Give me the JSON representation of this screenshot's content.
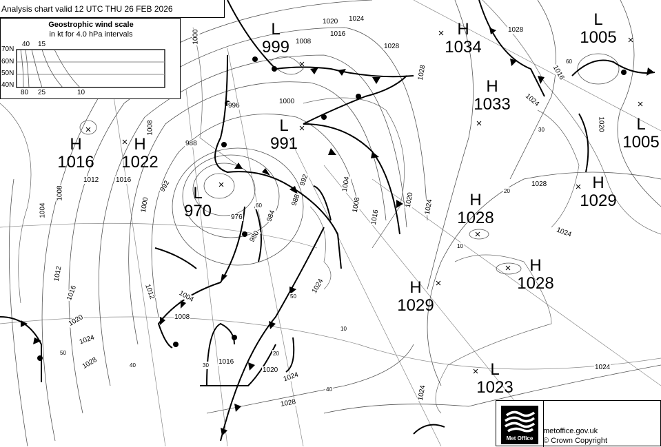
{
  "header": {
    "title": "Analysis chart  valid 12 UTC THU 26  FEB 2026"
  },
  "wind_scale": {
    "title": "Geostrophic wind scale",
    "subtitle": "in kt for 4.0 hPa intervals",
    "latitudes": [
      "70N",
      "60N",
      "50N",
      "40N"
    ],
    "top_labels": [
      "40",
      "15"
    ],
    "bottom_labels": [
      "80",
      "25",
      "10"
    ]
  },
  "pressure_systems": [
    {
      "type": "L",
      "value": "999"
    },
    {
      "type": "H",
      "value": "1034"
    },
    {
      "type": "L",
      "value": "1005"
    },
    {
      "type": "H",
      "value": "1033"
    },
    {
      "type": "L",
      "value": "991"
    },
    {
      "type": "H",
      "value": "1016"
    },
    {
      "type": "H",
      "value": "1022"
    },
    {
      "type": "L",
      "value": "1005"
    },
    {
      "type": "L",
      "value": "970"
    },
    {
      "type": "H",
      "value": "1029"
    },
    {
      "type": "H",
      "value": "1028"
    },
    {
      "type": "H",
      "value": "1028"
    },
    {
      "type": "H",
      "value": "1029"
    },
    {
      "type": "L",
      "value": "1023"
    }
  ],
  "isobar_labels": [
    "1000",
    "1008",
    "1020",
    "1016",
    "1024",
    "1028",
    "996",
    "1000",
    "988",
    "1008",
    "992",
    "1012",
    "1016",
    "1008",
    "1004",
    "1000",
    "976",
    "980",
    "984",
    "988",
    "992",
    "1004",
    "1008",
    "1016",
    "1020",
    "1024",
    "1012",
    "1016",
    "1020",
    "1024",
    "1028",
    "1004",
    "1008",
    "1012",
    "1016",
    "1020",
    "1024",
    "1028",
    "1024",
    "1028",
    "1028",
    "1024",
    "1024",
    "1024",
    "1020",
    "1016",
    "1028",
    "1024"
  ],
  "latitude_labels": [
    "60",
    "50",
    "40",
    "30",
    "20",
    "10",
    "10",
    "20",
    "30",
    "40",
    "50",
    "60"
  ],
  "footer": {
    "logo_text": "Met Office",
    "site": "metoffice.gov.uk",
    "copyright": "© Crown Copyright"
  },
  "colors": {
    "isobar": "#555555",
    "front": "#000000",
    "background": "#ffffff"
  }
}
